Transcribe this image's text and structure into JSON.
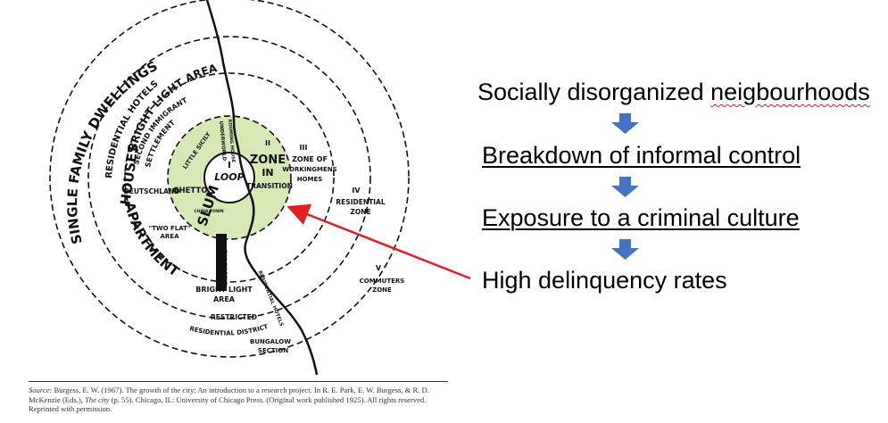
{
  "diagram": {
    "zones": {
      "zone1_num": "I",
      "zone1_name": "LOOP",
      "zone2_num": "II",
      "zone2_line1": "ZONE",
      "zone2_line2": "IN",
      "zone2_line3": "TRANSITION",
      "zone3_num": "III",
      "zone3_line1": "ZONE OF",
      "zone3_line2": "WORKINGMENS",
      "zone3_line3": "HOMES",
      "zone4_num": "IV",
      "zone4_line1": "RESIDENTIAL",
      "zone4_line2": "ZONE",
      "zone5_num": "V",
      "zone5_line1": "COMMUTERS",
      "zone5_line2": "ZONE"
    },
    "labels": {
      "single_family": "SINGLE FAMILY DWELLINGS",
      "residential_hotels": "RESIDENTIAL HOTELS",
      "bright_light_area_top": "BRIGHT LIGHT AREA",
      "second_immigrant_1": "SECOND IMMIGRANT",
      "second_immigrant_2": "SETTLEMENT",
      "houses": "HOUSES",
      "apartment": "APARTMENT",
      "deutschland": "DEUTSCHLAND",
      "ghetto": "GHETTO",
      "slum": "SLUM",
      "little_sicily": "LITTLE SICILY",
      "china_town": "CHINA TOWN",
      "underworld": "UNDERWORLD",
      "rooming_house": "ROOMING HOUSE",
      "two_flat_1": "\"TWO FLAT\"",
      "two_flat_2": "AREA",
      "black_belt": "BLACK BELT",
      "bright_light_area_bottom_1": "BRIGHT LIGHT",
      "bright_light_area_bottom_2": "AREA",
      "restricted_1": "RESTRICTED",
      "restricted_2": "RESIDENTIAL DISTRICT",
      "residential_hotels_bottom": "RESIDENTIAL HOTELS",
      "bungalow_1": "BUNGALOW",
      "bungalow_2": "SECTION"
    },
    "colors": {
      "zone2_fill": "#d6e8b4",
      "arrow_down": "#4472c4",
      "pointer_arrow": "#e02020",
      "ink": "#111111"
    }
  },
  "flow": {
    "step1": "Socially disorganized neigbourhoods",
    "step1_main": "Socially disorganized ",
    "step1_misspelled": "neigbourhoods",
    "step2": "Breakdown of informal control",
    "step3": "Exposure to a criminal culture",
    "step4": "High delinquency rates"
  },
  "source": {
    "label": "Source:",
    "text_part1": " Burgess, E. W. (1967). The growth of the city: An introduction to a research project. In R. E. Park, E. W. Burgess, & R. D. McKenzie (Eds.), ",
    "title": "The city",
    "text_part2": " (p. 55). Chicago, IL: University of Chicago Press. (Original work published 1925). All rights reserved. Reprinted with permission."
  }
}
